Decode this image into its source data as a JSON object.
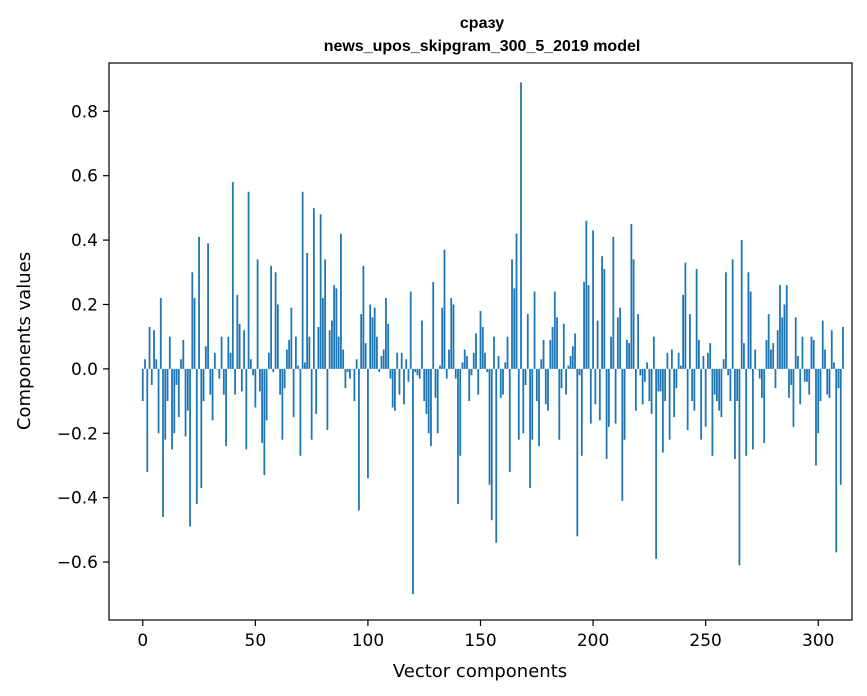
{
  "chart_data": {
    "type": "bar",
    "title": "сразу",
    "subtitle": "news_upos_skipgram_300_5_2019 model",
    "xlabel": "Vector components",
    "ylabel": "Components values",
    "xlim": [
      -15,
      315
    ],
    "ylim": [
      -0.78,
      0.95
    ],
    "xticks": [
      0,
      50,
      100,
      150,
      200,
      250,
      300
    ],
    "yticks": [
      -0.6,
      -0.4,
      -0.2,
      0.0,
      0.2,
      0.4,
      0.6,
      0.8
    ],
    "ytick_labels": [
      "−0.6",
      "−0.4",
      "−0.2",
      "0.0",
      "0.2",
      "0.4",
      "0.6",
      "0.8"
    ],
    "xtick_labels": [
      "0",
      "50",
      "100",
      "150",
      "200",
      "250",
      "300"
    ],
    "bar_color": "#1f77b4",
    "grid": false,
    "x_start": 0,
    "values": [
      -0.1,
      0.03,
      -0.32,
      0.13,
      -0.05,
      0.12,
      0.03,
      -0.2,
      0.22,
      -0.46,
      -0.22,
      -0.1,
      0.1,
      -0.25,
      -0.2,
      -0.05,
      -0.15,
      0.03,
      0.09,
      -0.21,
      -0.13,
      -0.49,
      0.3,
      0.22,
      -0.42,
      0.41,
      -0.37,
      -0.1,
      0.07,
      0.39,
      -0.08,
      -0.16,
      0.05,
      0.0,
      -0.03,
      0.1,
      -0.08,
      -0.24,
      0.1,
      0.05,
      0.58,
      -0.08,
      0.23,
      0.14,
      -0.07,
      0.12,
      -0.25,
      0.55,
      0.03,
      -0.02,
      -0.12,
      0.34,
      -0.07,
      -0.23,
      -0.33,
      -0.16,
      0.05,
      0.32,
      -0.01,
      0.3,
      0.2,
      -0.08,
      -0.22,
      -0.06,
      0.06,
      0.09,
      0.19,
      -0.15,
      0.1,
      0.01,
      -0.27,
      0.55,
      0.02,
      0.36,
      0.1,
      -0.22,
      0.5,
      -0.14,
      0.13,
      0.48,
      0.22,
      0.34,
      -0.19,
      0.12,
      0.15,
      0.26,
      0.25,
      0.1,
      0.42,
      0.06,
      -0.06,
      -0.01,
      -0.03,
      0.0,
      -0.1,
      0.03,
      -0.44,
      0.17,
      0.32,
      0.08,
      -0.34,
      0.2,
      0.16,
      0.19,
      0.1,
      -0.01,
      0.04,
      0.06,
      0.22,
      0.14,
      -0.03,
      -0.12,
      -0.13,
      0.05,
      -0.08,
      0.05,
      -0.11,
      0.03,
      -0.04,
      0.24,
      -0.7,
      -0.01,
      -0.02,
      -0.03,
      0.15,
      -0.1,
      -0.14,
      -0.2,
      -0.24,
      0.27,
      -0.09,
      -0.2,
      0.01,
      0.19,
      0.37,
      -0.03,
      0.06,
      0.22,
      0.2,
      -0.03,
      -0.42,
      -0.27,
      0.02,
      0.06,
      0.04,
      -0.1,
      -0.02,
      0.05,
      0.11,
      -0.08,
      0.18,
      0.13,
      0.05,
      -0.01,
      -0.36,
      -0.47,
      0.1,
      -0.54,
      0.04,
      -0.09,
      -0.08,
      0.02,
      0.1,
      -0.32,
      0.34,
      0.25,
      0.42,
      -0.22,
      0.89,
      -0.2,
      -0.05,
      0.17,
      -0.37,
      -0.22,
      0.24,
      -0.1,
      -0.24,
      0.03,
      0.09,
      -0.11,
      -0.13,
      0.09,
      0.13,
      0.24,
      0.16,
      -0.22,
      -0.06,
      0.14,
      -0.08,
      0.01,
      0.04,
      0.07,
      0.11,
      -0.52,
      -0.02,
      -0.27,
      0.27,
      0.46,
      0.26,
      -0.17,
      0.43,
      -0.11,
      0.15,
      -0.16,
      0.35,
      0.31,
      -0.28,
      -0.18,
      0.1,
      0.41,
      -0.17,
      0.16,
      0.19,
      -0.41,
      -0.22,
      0.09,
      0.08,
      0.45,
      0.34,
      -0.13,
      0.17,
      -0.02,
      -0.11,
      -0.04,
      0.02,
      -0.1,
      -0.14,
      0.1,
      -0.59,
      -0.07,
      -0.07,
      -0.26,
      -0.1,
      0.05,
      -0.22,
      0.06,
      -0.15,
      -0.06,
      0.05,
      0.01,
      0.23,
      0.33,
      -0.19,
      0.17,
      -0.1,
      -0.13,
      0.31,
      0.09,
      -0.22,
      0.04,
      -0.18,
      0.05,
      0.08,
      -0.27,
      -0.08,
      -0.1,
      -0.13,
      -0.15,
      0.03,
      0.3,
      -0.02,
      -0.1,
      0.34,
      -0.28,
      -0.1,
      -0.61,
      0.4,
      0.08,
      -0.27,
      0.3,
      0.24,
      -0.25,
      0.06,
      0.0,
      -0.03,
      -0.09,
      -0.23,
      0.09,
      0.17,
      0.06,
      0.08,
      -0.06,
      0.12,
      0.26,
      0.16,
      0.2,
      0.26,
      -0.09,
      -0.05,
      -0.18,
      0.16,
      0.04,
      -0.11,
      0.1,
      -0.04,
      -0.04,
      -0.08,
      0.1,
      0.09,
      -0.3,
      -0.2,
      -0.1,
      0.15,
      0.06,
      -0.08,
      -0.09,
      0.12,
      0.02,
      -0.57,
      -0.06,
      -0.36,
      0.13
    ]
  }
}
